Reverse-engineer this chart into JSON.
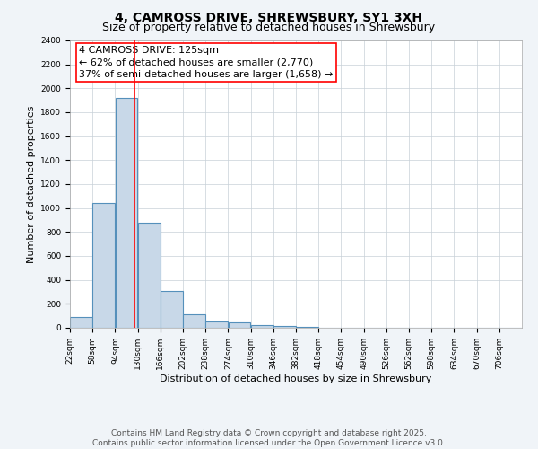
{
  "title": "4, CAMROSS DRIVE, SHREWSBURY, SY1 3XH",
  "subtitle": "Size of property relative to detached houses in Shrewsbury",
  "xlabel": "Distribution of detached houses by size in Shrewsbury",
  "ylabel": "Number of detached properties",
  "footer1": "Contains HM Land Registry data © Crown copyright and database right 2025.",
  "footer2": "Contains public sector information licensed under the Open Government Licence v3.0.",
  "annotation_line1": "4 CAMROSS DRIVE: 125sqm",
  "annotation_line2": "← 62% of detached houses are smaller (2,770)",
  "annotation_line3": "37% of semi-detached houses are larger (1,658) →",
  "bar_edges": [
    22,
    58,
    94,
    130,
    166,
    202,
    238,
    274,
    310,
    346,
    382,
    418,
    454,
    490,
    526,
    562,
    598,
    634,
    670,
    706,
    742
  ],
  "bar_heights": [
    90,
    1040,
    1920,
    880,
    310,
    115,
    55,
    45,
    20,
    15,
    10,
    0,
    0,
    0,
    0,
    0,
    0,
    0,
    0,
    0
  ],
  "bar_color": "#c8d8e8",
  "bar_edge_color": "#5590bb",
  "red_line_x": 125,
  "ylim": [
    0,
    2400
  ],
  "yticks": [
    0,
    200,
    400,
    600,
    800,
    1000,
    1200,
    1400,
    1600,
    1800,
    2000,
    2200,
    2400
  ],
  "background_color": "#f0f4f8",
  "plot_bg_color": "#ffffff",
  "grid_color": "#c8d0d8",
  "title_fontsize": 10,
  "subtitle_fontsize": 9,
  "tick_label_fontsize": 6.5,
  "axis_label_fontsize": 8,
  "annotation_fontsize": 8,
  "footer_fontsize": 6.5
}
